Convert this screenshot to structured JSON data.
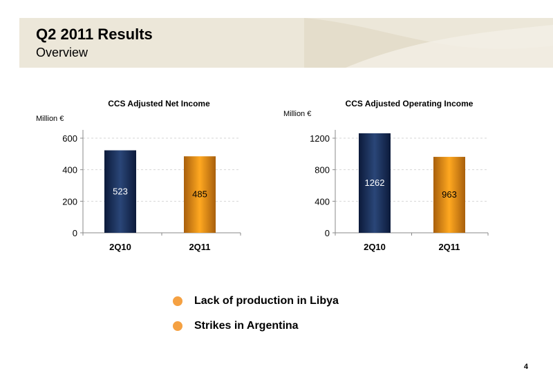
{
  "header": {
    "title": "Q2 2011 Results",
    "subtitle": "Overview"
  },
  "colors": {
    "navy": "#1a2f5c",
    "orange": "#f2a02a",
    "bullet": "#f5a142",
    "header_bg": "#ece7d9"
  },
  "chart_data": [
    {
      "type": "bar",
      "title": "CCS Adjusted Net Income",
      "ylabel": "Million €",
      "xlabel": "",
      "categories": [
        "2Q10",
        "2Q11"
      ],
      "values": [
        523,
        485
      ],
      "data_labels": [
        "523",
        "485"
      ],
      "bar_colors": [
        "navy",
        "orange"
      ],
      "ylim": [
        0,
        600
      ],
      "yticks": [
        0,
        200,
        400,
        600
      ],
      "grid": true,
      "legend": "none"
    },
    {
      "type": "bar",
      "title": "CCS Adjusted Operating Income",
      "ylabel": "Million €",
      "xlabel": "",
      "categories": [
        "2Q10",
        "2Q11"
      ],
      "values": [
        1262,
        963
      ],
      "data_labels": [
        "1262",
        "963"
      ],
      "bar_colors": [
        "navy",
        "orange"
      ],
      "ylim": [
        0,
        1200
      ],
      "yticks": [
        0,
        400,
        800,
        1200
      ],
      "grid": true,
      "legend": "none"
    }
  ],
  "bullets": [
    "Lack of production in Libya",
    "Strikes in Argentina"
  ],
  "page_number": "4"
}
